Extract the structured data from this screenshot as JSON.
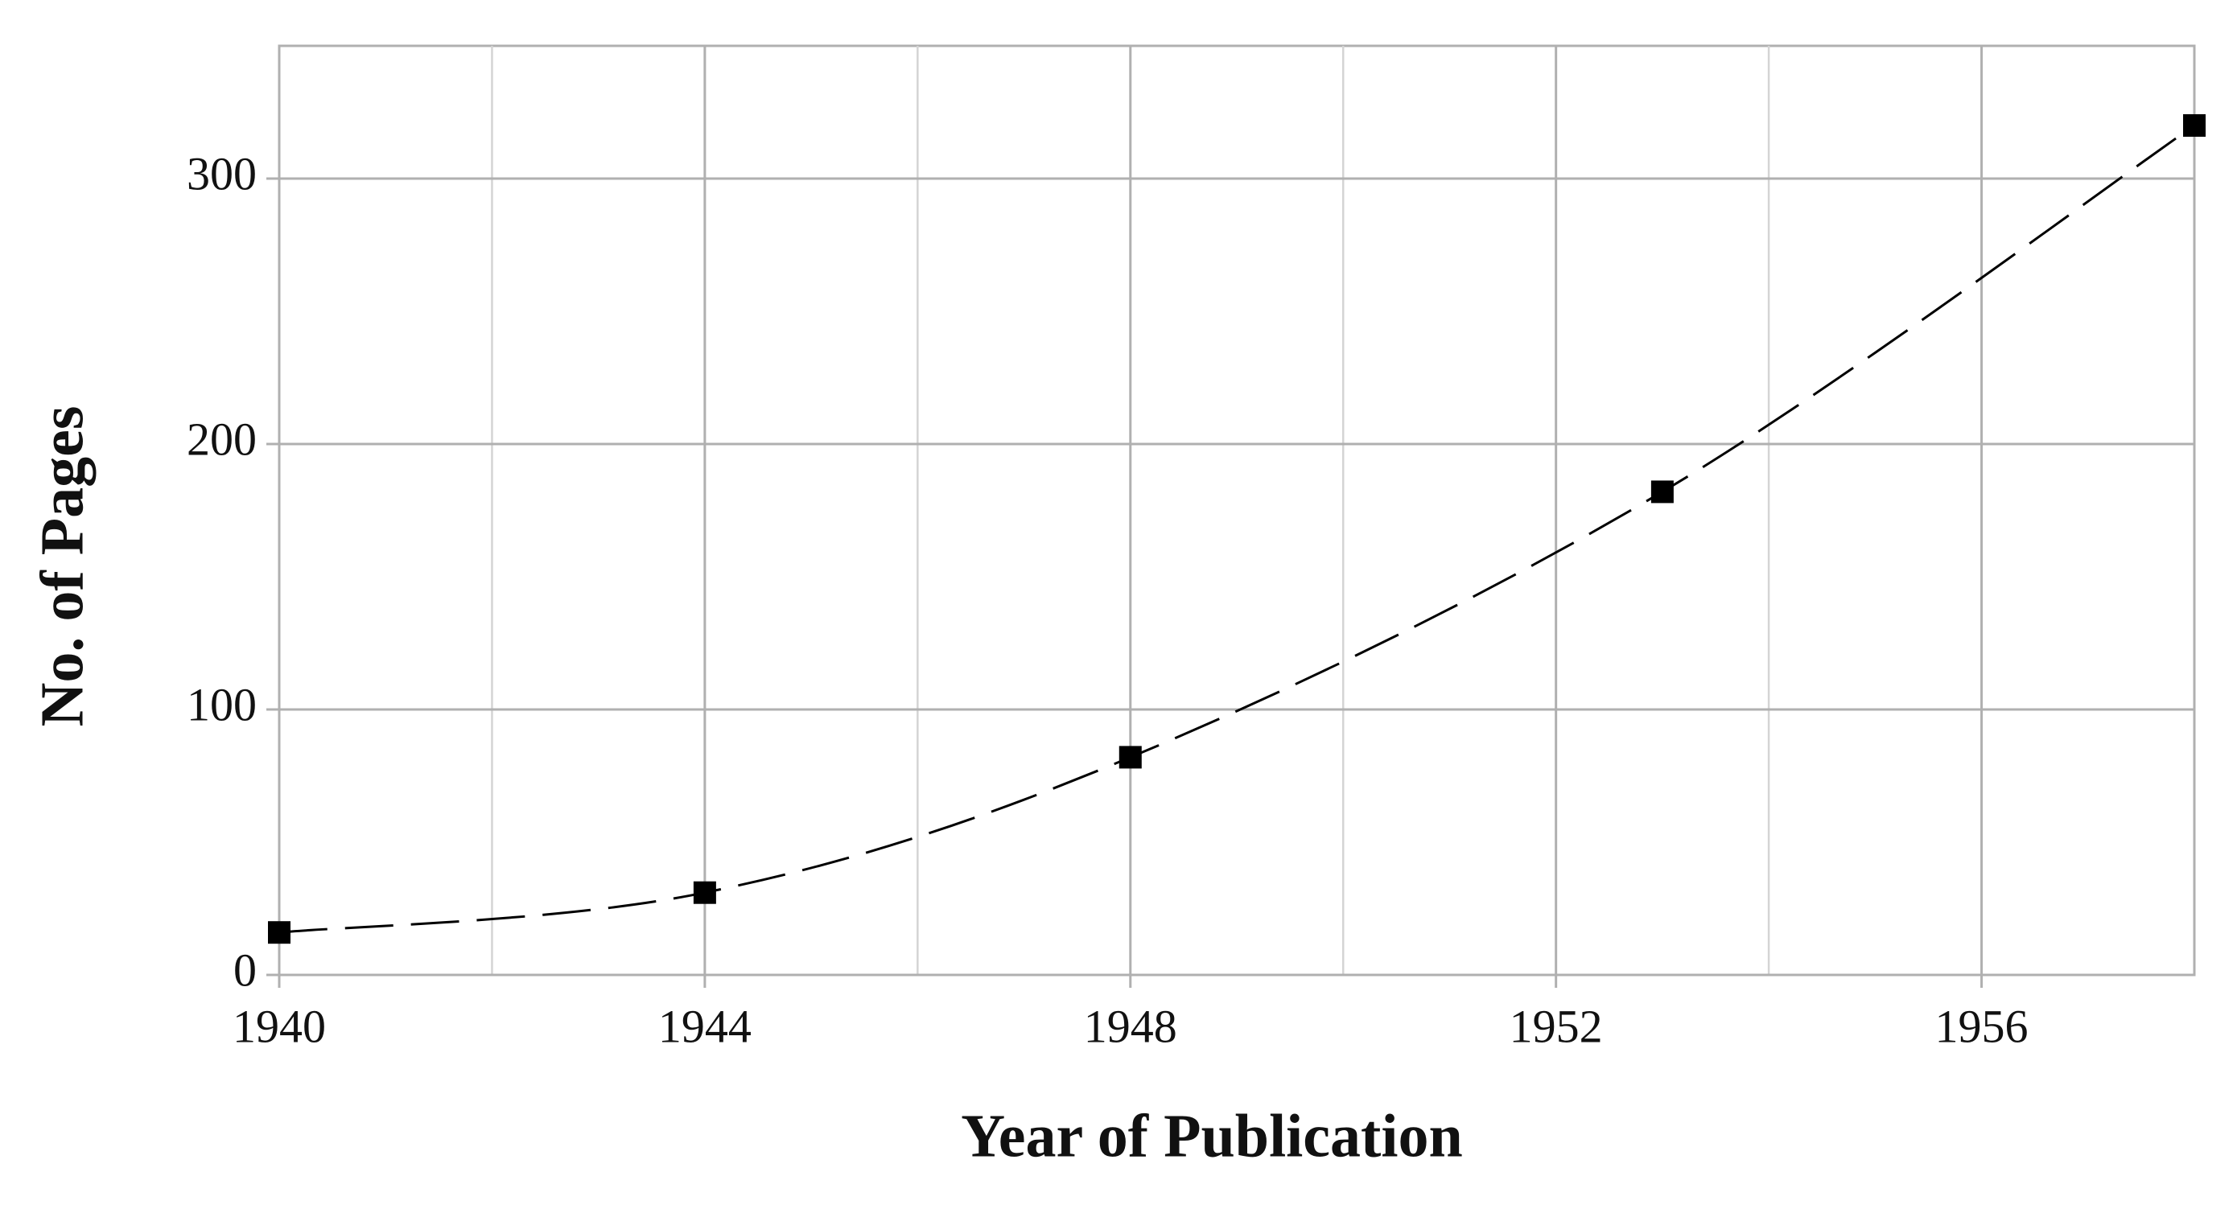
{
  "chart_data": {
    "type": "line",
    "x_label": "Year of Publication",
    "y_label": "No. of Pages",
    "x": [
      1940,
      1944,
      1948,
      1953,
      1958
    ],
    "series": [
      {
        "values": [
          16,
          31,
          82,
          182,
          320
        ],
        "color": "#000000"
      }
    ],
    "xlim": [
      1940,
      1958
    ],
    "xticks": [
      1940,
      1944,
      1948,
      1952,
      1956
    ],
    "x_minor_gridlines": [
      1942,
      1946,
      1950,
      1954
    ],
    "ylim": [
      0,
      350
    ],
    "yticks": [
      0,
      100,
      200,
      300
    ],
    "grid": true,
    "line_style": "dashed",
    "marker": "square"
  }
}
